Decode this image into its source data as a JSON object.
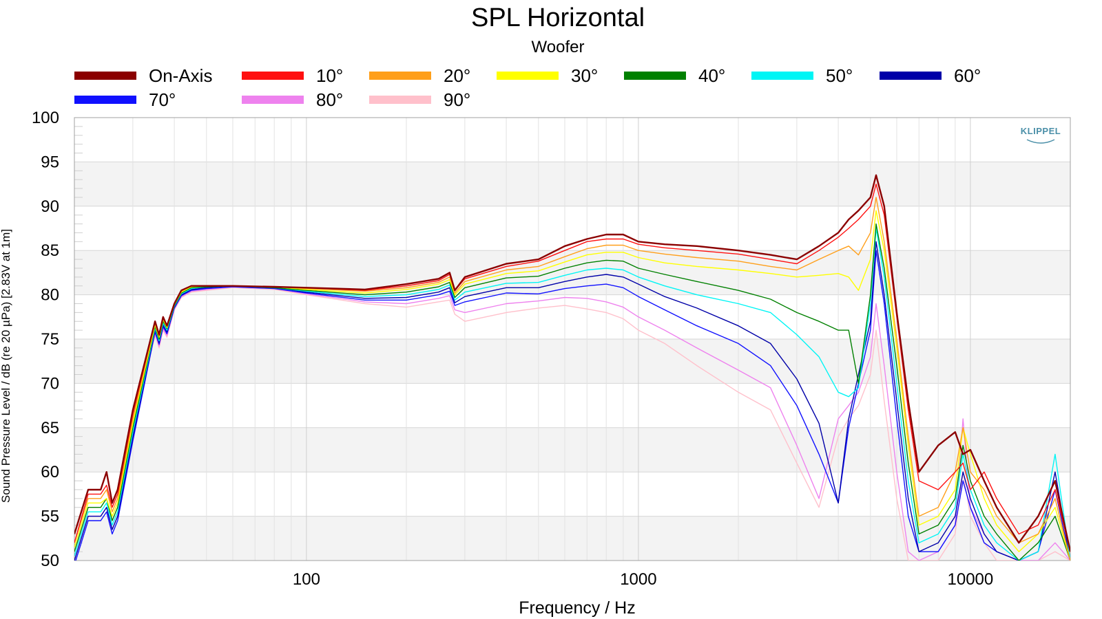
{
  "chart_data": {
    "type": "line",
    "title": "SPL Horizontal",
    "subtitle": "Woofer",
    "xlabel": "Frequency / Hz",
    "ylabel": "Sound Pressure Level / dB (re 20 µPa)  [2.83V at 1m]",
    "x_scale": "log",
    "xlim": [
      20,
      20000
    ],
    "ylim": [
      50,
      100
    ],
    "x_ticks": [
      100,
      1000,
      10000
    ],
    "x_tick_labels": [
      "100",
      "1000",
      "10000"
    ],
    "y_ticks": [
      50,
      55,
      60,
      65,
      70,
      75,
      80,
      85,
      90,
      95,
      100
    ],
    "grid": true,
    "legend_position": "top",
    "logo_text": "KLIPPEL",
    "x": [
      20,
      22,
      24,
      25,
      26,
      27,
      30,
      35,
      36,
      37,
      38,
      40,
      42,
      45,
      50,
      60,
      80,
      100,
      150,
      200,
      250,
      270,
      280,
      300,
      400,
      500,
      600,
      700,
      800,
      900,
      1000,
      1200,
      1500,
      2000,
      2500,
      3000,
      3500,
      4000,
      4300,
      4600,
      5000,
      5200,
      5500,
      6000,
      6500,
      7000,
      8000,
      9000,
      9500,
      10000,
      11000,
      12000,
      14000,
      16000,
      18000,
      20000
    ],
    "series": [
      {
        "name": "On-Axis",
        "color": "#8b0000",
        "values": [
          53,
          58,
          58,
          60,
          56.5,
          58,
          67,
          77,
          75.5,
          77.5,
          76.5,
          79,
          80.5,
          81,
          81,
          81,
          80.9,
          80.8,
          80.6,
          81.2,
          81.8,
          82.5,
          80.5,
          82,
          83.5,
          84,
          85.5,
          86.3,
          86.8,
          86.8,
          86,
          85.7,
          85.5,
          85,
          84.5,
          84,
          85.5,
          87,
          88.5,
          89.5,
          91,
          93.5,
          90,
          78,
          68,
          60,
          63,
          64.5,
          62,
          62.5,
          59,
          56,
          52,
          55,
          59,
          51
        ]
      },
      {
        "name": "10°",
        "color": "#ff1010",
        "values": [
          52,
          57.5,
          57.5,
          58.5,
          56,
          57.5,
          66.5,
          77,
          75.5,
          77.5,
          76.5,
          79,
          80.5,
          81,
          81,
          81,
          80.9,
          80.8,
          80.5,
          81,
          81.6,
          82.3,
          80.5,
          81.8,
          83.2,
          83.8,
          85,
          86,
          86.3,
          86.3,
          85.7,
          85.3,
          85,
          84.6,
          84,
          83.5,
          85,
          86.5,
          87.5,
          88.5,
          90,
          92.5,
          89,
          77.5,
          67,
          59,
          58,
          60,
          61,
          58,
          60,
          57,
          53,
          54,
          58,
          51
        ]
      },
      {
        "name": "20°",
        "color": "#ff9f1a",
        "values": [
          52,
          57,
          57,
          58,
          55.5,
          57,
          66,
          76.8,
          75.3,
          77.3,
          76.5,
          79,
          80.4,
          81,
          81,
          81,
          80.9,
          80.7,
          80.4,
          80.8,
          81.4,
          82,
          80.2,
          81.5,
          82.8,
          83.2,
          84.3,
          85.2,
          85.6,
          85.6,
          85,
          84.6,
          84.2,
          83.8,
          83.2,
          82.8,
          84,
          85,
          85.5,
          84.5,
          87,
          91,
          86,
          75,
          64,
          55,
          56,
          60,
          65,
          60,
          58,
          55,
          52,
          53,
          57,
          50
        ]
      },
      {
        "name": "30°",
        "color": "#ffff00",
        "values": [
          51.5,
          56.5,
          56.5,
          57,
          55,
          56.5,
          65.5,
          76.6,
          75.2,
          77.2,
          76.3,
          78.9,
          80.3,
          80.9,
          81,
          81,
          80.9,
          80.6,
          80.2,
          80.6,
          81.2,
          81.7,
          80,
          81.2,
          82.4,
          82.7,
          83.7,
          84.5,
          84.8,
          84.8,
          84.2,
          83.6,
          83.2,
          82.8,
          82.4,
          82,
          82.2,
          82.4,
          82,
          80.5,
          84,
          89.5,
          85,
          74,
          63,
          54,
          55,
          58,
          65,
          62,
          57,
          54,
          51,
          53,
          56,
          50
        ]
      },
      {
        "name": "40°",
        "color": "#008000",
        "values": [
          51,
          56,
          56,
          57,
          54.5,
          56,
          65,
          76.4,
          75,
          77,
          76.2,
          78.8,
          80.2,
          80.8,
          80.9,
          81,
          80.8,
          80.5,
          80,
          80.3,
          80.9,
          81.4,
          79.7,
          80.8,
          81.9,
          82.1,
          83,
          83.6,
          83.9,
          83.8,
          83,
          82.3,
          81.5,
          80.5,
          79.5,
          78,
          77,
          76,
          76,
          70,
          80,
          88,
          83,
          72,
          61,
          53,
          54,
          57,
          63,
          59,
          55,
          53,
          50,
          52,
          55,
          50
        ]
      },
      {
        "name": "50°",
        "color": "#00f5f5",
        "values": [
          50.5,
          55.5,
          55.5,
          56.5,
          54,
          55.5,
          64.5,
          76.2,
          74.8,
          76.8,
          76,
          78.7,
          80.1,
          80.7,
          80.9,
          81,
          80.8,
          80.4,
          79.8,
          80,
          80.6,
          81.1,
          79.4,
          80.3,
          81.3,
          81.4,
          82.2,
          82.8,
          83,
          82.8,
          82,
          81,
          80,
          79,
          78,
          75.5,
          73,
          69,
          68.5,
          69.5,
          79,
          87.5,
          82,
          70,
          59,
          52,
          53,
          56,
          62,
          58,
          54,
          52,
          50,
          51,
          62,
          50
        ]
      },
      {
        "name": "60°",
        "color": "#0000a8",
        "values": [
          50,
          55,
          55,
          56,
          53.5,
          55,
          64,
          76,
          74.6,
          76.6,
          75.8,
          78.6,
          80,
          80.6,
          80.8,
          81,
          80.8,
          80.3,
          79.6,
          79.7,
          80.3,
          80.8,
          79.1,
          79.8,
          80.8,
          80.8,
          81.5,
          82,
          82.3,
          82,
          81.2,
          79.8,
          78.5,
          76.5,
          74.5,
          70.5,
          65.5,
          56.5,
          66,
          71,
          77,
          86,
          80,
          68,
          57,
          51,
          52,
          55,
          60,
          57,
          53,
          51,
          50,
          51,
          60,
          50
        ]
      },
      {
        "name": "70°",
        "color": "#1010ff",
        "values": [
          49.5,
          54.5,
          54.5,
          55.5,
          53,
          54.5,
          63.5,
          75.8,
          74.4,
          76.4,
          75.6,
          78.5,
          79.9,
          80.5,
          80.7,
          80.9,
          80.7,
          80.2,
          79.4,
          79.4,
          80,
          80.4,
          78.8,
          79.2,
          80.2,
          80.1,
          80.7,
          81,
          81.2,
          80.8,
          79.8,
          78.3,
          76.5,
          74.5,
          72,
          67.5,
          62,
          56.5,
          65,
          70,
          76,
          85,
          79,
          66,
          55,
          51,
          51,
          54,
          59,
          56,
          52,
          51,
          50,
          51,
          58,
          50
        ]
      },
      {
        "name": "80°",
        "color": "#ee82ee",
        "values": [
          50,
          55,
          55,
          56,
          53.5,
          55,
          64.5,
          75.6,
          74.2,
          76.2,
          75.4,
          78.4,
          79.8,
          80.4,
          80.6,
          80.9,
          80.7,
          80.1,
          79.2,
          79,
          79.6,
          79.9,
          78.3,
          78,
          79,
          79.3,
          79.7,
          79.6,
          79.2,
          78.6,
          77.5,
          76,
          74,
          71.5,
          69.5,
          63,
          57,
          66,
          67.5,
          69,
          73,
          79,
          72,
          60,
          51,
          50,
          51,
          54,
          66,
          56,
          53,
          51,
          50,
          50,
          52,
          50
        ]
      },
      {
        "name": "90°",
        "color": "#ffc0cb",
        "values": [
          51,
          56,
          56,
          57,
          54.5,
          56,
          65.5,
          75.4,
          74,
          76,
          75.2,
          78.3,
          79.7,
          80.3,
          80.5,
          80.8,
          80.6,
          80,
          79,
          78.6,
          79.2,
          79.4,
          77.8,
          77,
          78,
          78.5,
          78.8,
          78.4,
          78,
          77.3,
          76,
          74.5,
          72,
          69,
          67,
          61,
          56,
          64,
          66,
          67.5,
          71,
          76,
          68,
          57,
          50,
          50,
          50,
          53,
          60,
          55,
          52,
          50,
          50,
          50,
          51,
          50
        ]
      }
    ]
  }
}
